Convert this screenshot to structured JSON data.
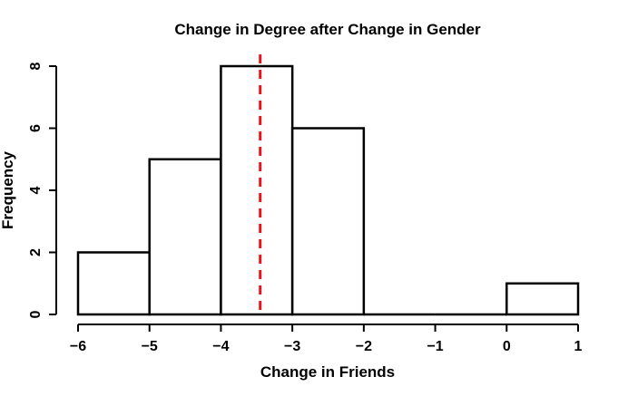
{
  "chart_data": {
    "type": "bar",
    "title": "Change in Degree after Change in Gender",
    "xlabel": "Change in Friends",
    "ylabel": "Frequency",
    "bins": [
      {
        "x0": -6,
        "x1": -5,
        "count": 2
      },
      {
        "x0": -5,
        "x1": -4,
        "count": 5
      },
      {
        "x0": -4,
        "x1": -3,
        "count": 8
      },
      {
        "x0": -3,
        "x1": -2,
        "count": 6
      },
      {
        "x0": -2,
        "x1": -1,
        "count": 0
      },
      {
        "x0": -1,
        "x1": 0,
        "count": 0
      },
      {
        "x0": 0,
        "x1": 1,
        "count": 1
      }
    ],
    "xlim": [
      -6,
      1
    ],
    "ylim": [
      0,
      8
    ],
    "xticks": [
      {
        "value": -6,
        "label": "−6"
      },
      {
        "value": -5,
        "label": "−5"
      },
      {
        "value": -4,
        "label": "−4"
      },
      {
        "value": -3,
        "label": "−3"
      },
      {
        "value": -2,
        "label": "−2"
      },
      {
        "value": -1,
        "label": "−1"
      },
      {
        "value": 0,
        "label": "0"
      },
      {
        "value": 1,
        "label": "1"
      }
    ],
    "yticks": [
      {
        "value": 0,
        "label": "0"
      },
      {
        "value": 2,
        "label": "2"
      },
      {
        "value": 4,
        "label": "4"
      },
      {
        "value": 6,
        "label": "6"
      },
      {
        "value": 8,
        "label": "8"
      }
    ],
    "mean_line": {
      "x": -3.45,
      "color": "#e8141a"
    },
    "grid": false,
    "bar_fill": "#ffffff",
    "bar_stroke": "#000000"
  }
}
